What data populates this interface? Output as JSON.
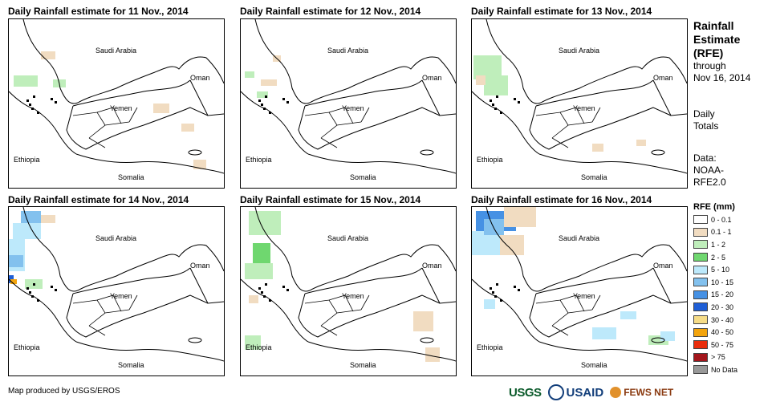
{
  "panels": [
    {
      "title": "Daily Rainfall estimate for 11 Nov., 2014"
    },
    {
      "title": "Daily Rainfall estimate for 12 Nov., 2014"
    },
    {
      "title": "Daily Rainfall estimate for 13 Nov., 2014"
    },
    {
      "title": "Daily Rainfall estimate for 14 Nov., 2014"
    },
    {
      "title": "Daily Rainfall estimate for 15 Nov., 2014"
    },
    {
      "title": "Daily Rainfall estimate for 16 Nov., 2014"
    }
  ],
  "map_labels": {
    "saudi": "Saudi Arabia",
    "oman": "Oman",
    "yemen": "Yemen",
    "ethiopia": "Ethiopia",
    "somalia": "Somalia"
  },
  "side": {
    "title_line1": "Rainfall",
    "title_line2": "Estimate",
    "title_line3": "(RFE)",
    "through": "through",
    "date": "Nov 16, 2014",
    "daily": "Daily",
    "totals": "Totals",
    "data_label": "Data:",
    "source1": "NOAA-",
    "source2": "RFE2.0"
  },
  "legend": {
    "title": "RFE (mm)",
    "items": [
      {
        "label": "0 - 0.1",
        "color": "#ffffff"
      },
      {
        "label": "0.1 - 1",
        "color": "#f1dcc1"
      },
      {
        "label": "1 - 2",
        "color": "#bfeebb"
      },
      {
        "label": "2 - 5",
        "color": "#6fd76f"
      },
      {
        "label": "5 - 10",
        "color": "#bde9fb"
      },
      {
        "label": "10 - 15",
        "color": "#83c1ee"
      },
      {
        "label": "15 - 20",
        "color": "#4691e4"
      },
      {
        "label": "20 - 30",
        "color": "#1f5fd6"
      },
      {
        "label": "30 - 40",
        "color": "#f6dc87"
      },
      {
        "label": "40 - 50",
        "color": "#f3a40c"
      },
      {
        "label": "50 - 75",
        "color": "#ea2d0c"
      },
      {
        "label": "> 75",
        "color": "#a3161c"
      },
      {
        "label": "No Data",
        "color": "#999999"
      }
    ]
  },
  "credit": "Map produced by USGS/EROS",
  "logos": {
    "usgs": "USGS",
    "usaid": "USAID",
    "fews": "FEWS NET"
  }
}
